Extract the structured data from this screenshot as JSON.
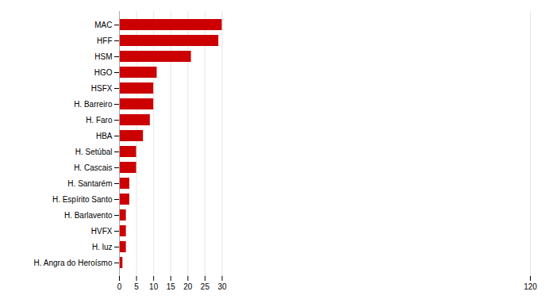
{
  "chart_data": {
    "type": "bar",
    "orientation": "horizontal",
    "categories": [
      "H. Angra do Heroísmo",
      "H. luz",
      "HVFX",
      "H. Barlavento",
      "H. Espírito Santo",
      "H. Santarém",
      "H. Cascais",
      "H. Setúbal",
      "HBA",
      "H. Faro",
      "H. Barreiro",
      "HSFX",
      "HGO",
      "HSM",
      "HFF",
      "MAC"
    ],
    "values": [
      1,
      2,
      2,
      2,
      3,
      3,
      5,
      5,
      7,
      9,
      10,
      10,
      11,
      21,
      29,
      30
    ],
    "color": "#cc0000",
    "xlim": [
      0,
      120
    ],
    "xticks": [
      0,
      5,
      10,
      15,
      20,
      25,
      30,
      120
    ],
    "grid": true
  }
}
